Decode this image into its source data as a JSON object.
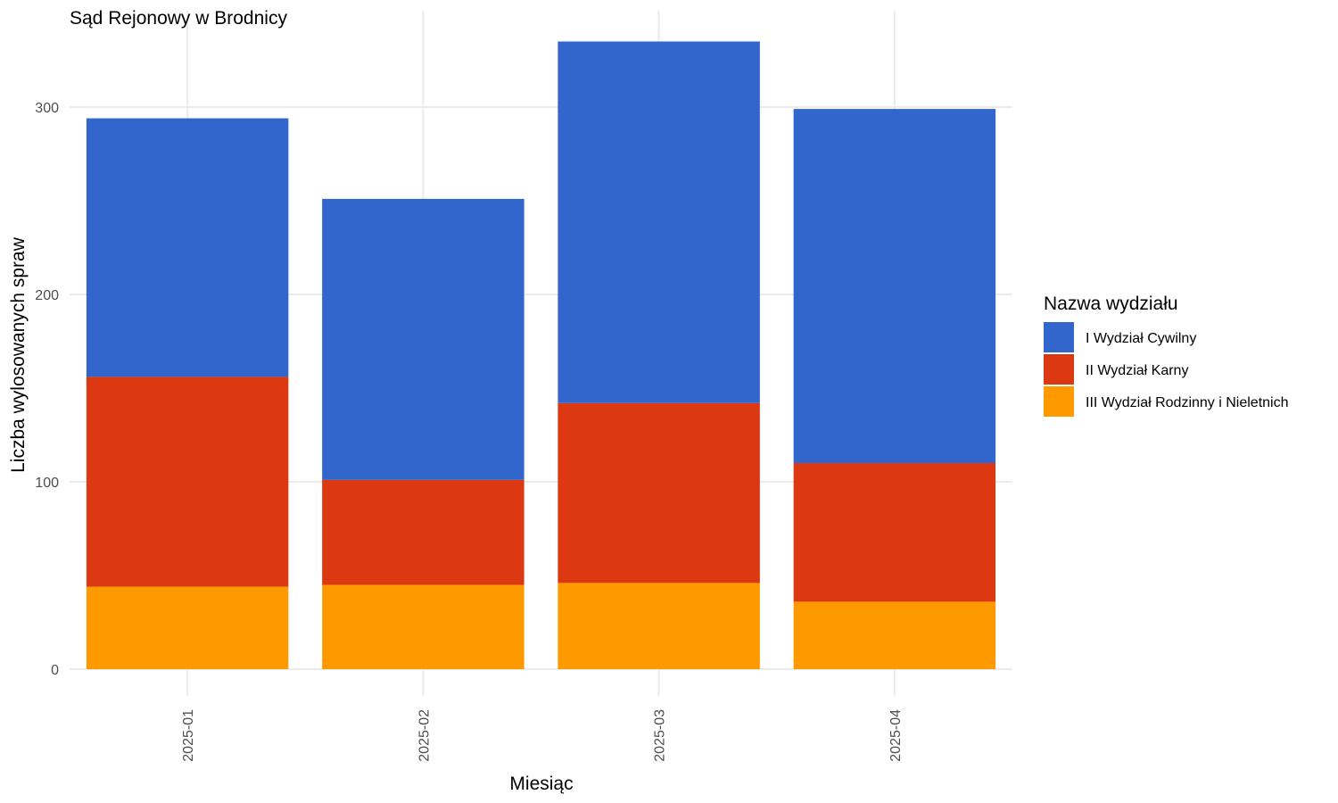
{
  "chart_data": {
    "type": "bar",
    "stacked": true,
    "title": "Sąd Rejonowy w Brodnicy",
    "xlabel": "Miesiąc",
    "ylabel": "Liczba wylosowanych spraw",
    "categories": [
      "2025-01",
      "2025-02",
      "2025-03",
      "2025-04"
    ],
    "series": [
      {
        "name": "I Wydział Cywilny",
        "color": "#3366cc",
        "values": [
          138,
          150,
          193,
          189
        ]
      },
      {
        "name": "II Wydział Karny",
        "color": "#dc3912",
        "values": [
          112,
          56,
          96,
          74
        ]
      },
      {
        "name": "III Wydział Rodzinny i Nieletnich",
        "color": "#ff9900",
        "values": [
          44,
          45,
          46,
          36
        ]
      }
    ],
    "yticks": [
      0,
      100,
      200,
      300
    ],
    "ylim": [
      -12,
      350
    ],
    "grid": true,
    "legend": {
      "title": "Nazwa wydziału",
      "position": "right"
    }
  }
}
